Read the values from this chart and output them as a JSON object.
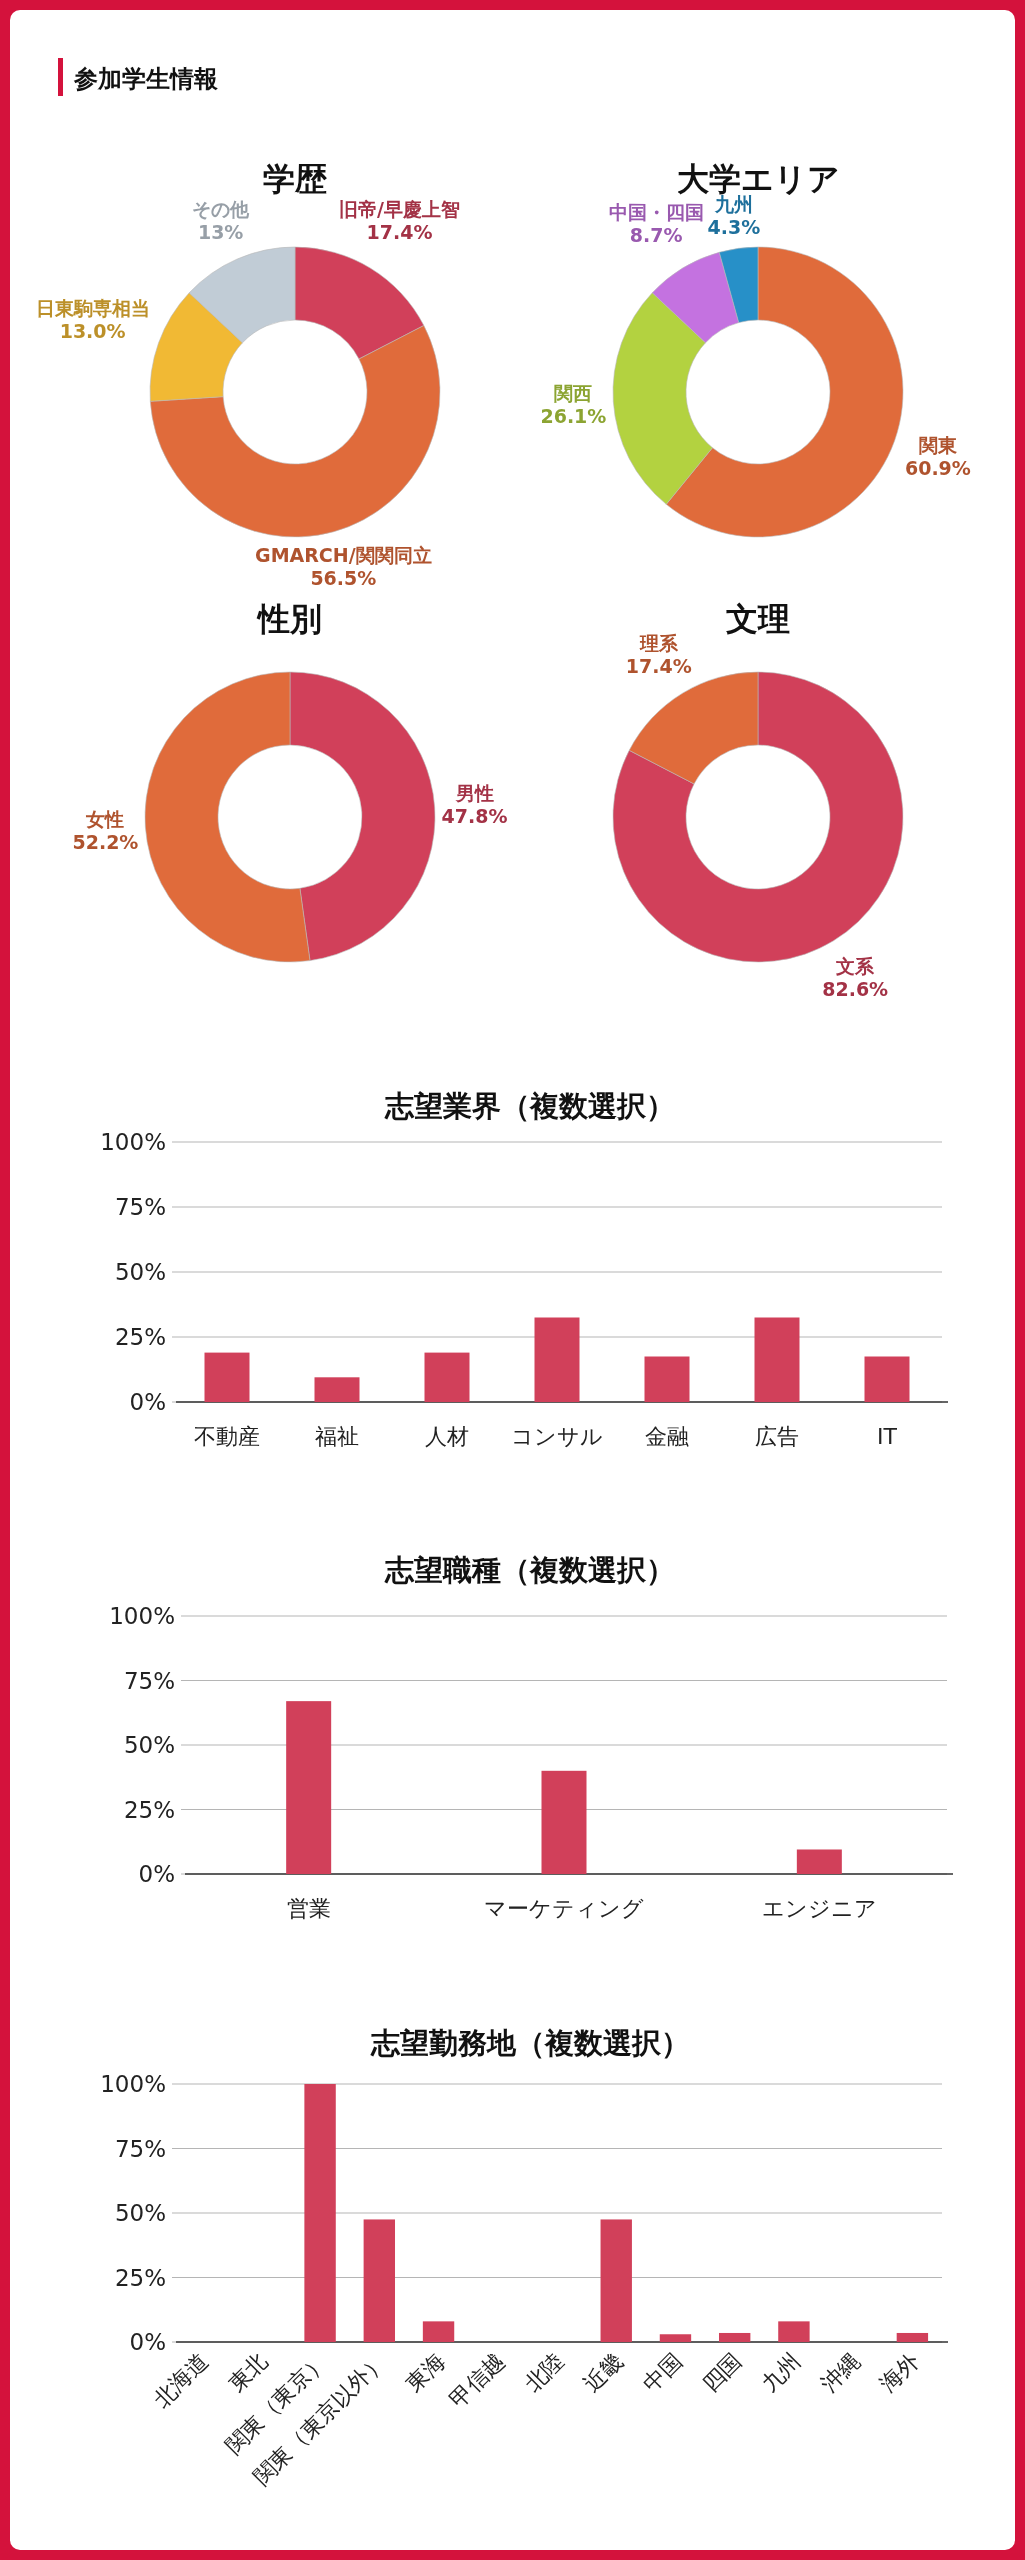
{
  "chart_data": [
    {
      "type": "other",
      "title": "参加学生情報"
    },
    {
      "type": "donut",
      "title": "学歴",
      "categories": [
        "旧帝/早慶上智",
        "GMARCH/関関同立",
        "日東駒専相当",
        "その他"
      ],
      "values": [
        17.4,
        56.5,
        13.0,
        13
      ],
      "colors": [
        "#d1405a",
        "#e06b3b",
        "#f1b934",
        "#c1ccd6"
      ],
      "value_labels": [
        "17.4%",
        "56.5%",
        "13.0%",
        "13%"
      ]
    },
    {
      "type": "donut",
      "title": "大学エリア",
      "categories": [
        "関東",
        "関西",
        "中国・四国",
        "九州"
      ],
      "values": [
        60.9,
        26.1,
        8.7,
        4.3
      ],
      "colors": [
        "#e06b3b",
        "#b3d240",
        "#c472e0",
        "#2790c8"
      ],
      "value_labels": [
        "60.9%",
        "26.1%",
        "8.7%",
        "4.3%"
      ]
    },
    {
      "type": "donut",
      "title": "性別",
      "categories": [
        "男性",
        "女性"
      ],
      "values": [
        47.8,
        52.2
      ],
      "colors": [
        "#d1405a",
        "#e06b3b"
      ],
      "value_labels": [
        "47.8%",
        "52.2%"
      ]
    },
    {
      "type": "donut",
      "title": "文理",
      "categories": [
        "文系",
        "理系"
      ],
      "values": [
        82.6,
        17.4
      ],
      "colors": [
        "#d1405a",
        "#e06b3b"
      ],
      "value_labels": [
        "82.6%",
        "17.4%"
      ]
    },
    {
      "type": "bar",
      "title": "志望業界（複数選択）",
      "categories": [
        "不動産",
        "福祉",
        "人材",
        "コンサル",
        "金融",
        "広告",
        "IT"
      ],
      "values": [
        19,
        9.5,
        19,
        32.5,
        17.5,
        32.5,
        17.5
      ],
      "color": "#d1405a",
      "ylim": [
        0,
        100
      ],
      "yticks": [
        {
          "value": 0,
          "label": "0%"
        },
        {
          "value": 25,
          "label": "25%"
        },
        {
          "value": 50,
          "label": "50%"
        },
        {
          "value": 75,
          "label": "75%"
        },
        {
          "value": 100,
          "label": "100%"
        }
      ],
      "grid": "y"
    },
    {
      "type": "bar",
      "title": "志望職種（複数選択）",
      "categories": [
        "営業",
        "マーケティング",
        "エンジニア"
      ],
      "values": [
        67,
        40,
        9.5
      ],
      "color": "#d1405a",
      "ylim": [
        0,
        100
      ],
      "yticks": [
        {
          "value": 0,
          "label": "0%"
        },
        {
          "value": 25,
          "label": "25%"
        },
        {
          "value": 50,
          "label": "50%"
        },
        {
          "value": 75,
          "label": "75%"
        },
        {
          "value": 100,
          "label": "100%"
        }
      ],
      "grid": "y"
    },
    {
      "type": "bar",
      "title": "志望勤務地（複数選択）",
      "categories": [
        "北海道",
        "東北",
        "関東（東京）",
        "関東（東京以外）",
        "東海",
        "甲信越",
        "北陸",
        "近畿",
        "中国",
        "四国",
        "九州",
        "沖縄",
        "海外"
      ],
      "values": [
        0,
        0,
        100,
        47.5,
        8,
        0,
        0,
        47.5,
        3,
        3.5,
        8,
        0,
        3.5
      ],
      "color": "#d1405a",
      "ylim": [
        0,
        100
      ],
      "yticks": [
        {
          "value": 0,
          "label": "0%"
        },
        {
          "value": 25,
          "label": "25%"
        },
        {
          "value": 50,
          "label": "50%"
        },
        {
          "value": 75,
          "label": "75%"
        },
        {
          "value": 100,
          "label": "100%"
        }
      ],
      "grid": "y"
    }
  ]
}
